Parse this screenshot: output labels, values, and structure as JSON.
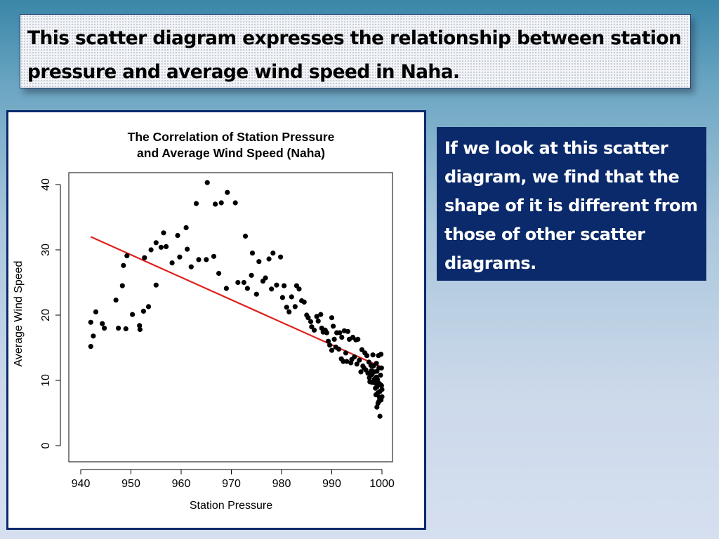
{
  "slide": {
    "heading": "This scatter diagram expresses the relationship between station pressure and average wind speed in Naha.",
    "note": "If we look at this scatter diagram, we find that the shape of it is different from  those of other scatter diagrams."
  },
  "chart_data": {
    "type": "scatter",
    "title_line1": "The Correlation of Station Pressure",
    "title_line2": "and Average Wind Speed (Naha)",
    "xlabel": "Station Pressure",
    "ylabel": "Average Wind Speed",
    "xlim": [
      940,
      1000
    ],
    "ylim": [
      0,
      40
    ],
    "xticks": [
      940,
      950,
      960,
      970,
      980,
      990,
      1000
    ],
    "yticks": [
      0,
      10,
      20,
      30,
      40
    ],
    "grid": false,
    "point_color": "#000000",
    "trend_color": "#e0201b",
    "trend_line": {
      "x": [
        942,
        1000
      ],
      "y": [
        32,
        12
      ]
    },
    "points": [
      [
        942,
        15.2
      ],
      [
        942,
        18.9
      ],
      [
        942.5,
        16.8
      ],
      [
        943,
        20.5
      ],
      [
        944.3,
        18.7
      ],
      [
        944.7,
        18
      ],
      [
        947,
        22.3
      ],
      [
        947.5,
        18
      ],
      [
        948.3,
        24.5
      ],
      [
        948.5,
        27.6
      ],
      [
        949,
        17.9
      ],
      [
        949.2,
        29.1
      ],
      [
        950.3,
        20.1
      ],
      [
        951.7,
        18.4
      ],
      [
        951.8,
        17.8
      ],
      [
        952.5,
        20.6
      ],
      [
        952.7,
        28.8
      ],
      [
        953.5,
        21.3
      ],
      [
        954,
        30
      ],
      [
        955,
        24.6
      ],
      [
        955,
        31.1
      ],
      [
        956,
        30.4
      ],
      [
        956.5,
        32.6
      ],
      [
        957,
        30.5
      ],
      [
        958.2,
        28
      ],
      [
        959.3,
        32.2
      ],
      [
        959.7,
        28.9
      ],
      [
        961,
        33.4
      ],
      [
        961.2,
        30.1
      ],
      [
        962,
        27.4
      ],
      [
        963,
        37.1
      ],
      [
        963.5,
        28.5
      ],
      [
        965.2,
        40.3
      ],
      [
        965,
        28.5
      ],
      [
        966.5,
        29
      ],
      [
        966.8,
        37
      ],
      [
        967.5,
        26.4
      ],
      [
        968,
        37.2
      ],
      [
        969,
        24.1
      ],
      [
        969.2,
        38.8
      ],
      [
        970.8,
        37.2
      ],
      [
        971.3,
        25
      ],
      [
        972.5,
        25
      ],
      [
        972.8,
        32.1
      ],
      [
        973.2,
        24.1
      ],
      [
        974,
        26.1
      ],
      [
        974.2,
        29.5
      ],
      [
        975,
        23.2
      ],
      [
        975.5,
        28.2
      ],
      [
        976.3,
        25.2
      ],
      [
        976.8,
        25.7
      ],
      [
        977.5,
        28.6
      ],
      [
        978,
        24
      ],
      [
        978.3,
        29.5
      ],
      [
        979,
        24.6
      ],
      [
        979.8,
        28.9
      ],
      [
        980.2,
        22.7
      ],
      [
        980.5,
        24.5
      ],
      [
        981,
        21.2
      ],
      [
        981.5,
        20.5
      ],
      [
        982,
        22.8
      ],
      [
        982.7,
        21.3
      ],
      [
        983,
        24.5
      ],
      [
        983.5,
        24
      ],
      [
        984,
        22.2
      ],
      [
        984.5,
        22
      ],
      [
        985,
        20
      ],
      [
        985.3,
        19.6
      ],
      [
        985.8,
        19
      ],
      [
        986,
        18.2
      ],
      [
        986.5,
        17.7
      ],
      [
        987,
        19.8
      ],
      [
        987.3,
        19.1
      ],
      [
        987.8,
        20.1
      ],
      [
        988,
        18
      ],
      [
        988.3,
        17.4
      ],
      [
        988.7,
        17.7
      ],
      [
        989,
        17.3
      ],
      [
        989.3,
        16
      ],
      [
        989.6,
        15.4
      ],
      [
        990,
        19.6
      ],
      [
        990,
        14.6
      ],
      [
        990.3,
        18.3
      ],
      [
        990.5,
        16.3
      ],
      [
        990.8,
        15.1
      ],
      [
        991,
        17.3
      ],
      [
        991.4,
        14.8
      ],
      [
        991.6,
        17.3
      ],
      [
        991.9,
        13.3
      ],
      [
        992,
        16.6
      ],
      [
        992.3,
        12.9
      ],
      [
        992.5,
        17.6
      ],
      [
        992.8,
        14.2
      ],
      [
        993,
        12.9
      ],
      [
        993.2,
        17.5
      ],
      [
        993.5,
        16.3
      ],
      [
        993.8,
        12.7
      ],
      [
        994,
        13.2
      ],
      [
        994.2,
        16.6
      ],
      [
        994.5,
        13.6
      ],
      [
        994.8,
        16.2
      ],
      [
        995,
        12.5
      ],
      [
        995.2,
        16.3
      ],
      [
        995.5,
        13.1
      ],
      [
        995.8,
        11.3
      ],
      [
        996,
        14.7
      ],
      [
        996.2,
        12.2
      ],
      [
        996.4,
        11.9
      ],
      [
        996.6,
        14.2
      ],
      [
        996.8,
        11.6
      ],
      [
        997,
        13.8
      ],
      [
        997.2,
        11.1
      ],
      [
        997.4,
        12.8
      ],
      [
        997.5,
        10.4
      ],
      [
        997.6,
        9.8
      ],
      [
        997.8,
        12.3
      ],
      [
        998,
        10.9
      ],
      [
        998,
        9.7
      ],
      [
        998.2,
        13.9
      ],
      [
        998.3,
        12.2
      ],
      [
        998.4,
        11.3
      ],
      [
        998.5,
        10.2
      ],
      [
        998.6,
        9.6
      ],
      [
        998.7,
        8.8
      ],
      [
        998.8,
        7.8
      ],
      [
        998.9,
        12.6
      ],
      [
        999,
        11.4
      ],
      [
        999,
        9
      ],
      [
        999,
        5.9
      ],
      [
        999.1,
        10.1
      ],
      [
        999.2,
        8.1
      ],
      [
        999.2,
        6.5
      ],
      [
        999.3,
        13.8
      ],
      [
        999.4,
        11.9
      ],
      [
        999.5,
        9.5
      ],
      [
        999.5,
        7.4
      ],
      [
        999.6,
        8.3
      ],
      [
        999.6,
        4.5
      ],
      [
        999.7,
        10.8
      ],
      [
        999.8,
        7
      ],
      [
        999.8,
        14
      ],
      [
        999.9,
        9.2
      ],
      [
        999.9,
        11.9
      ],
      [
        1000,
        7.5
      ],
      [
        1000,
        8.6
      ],
      [
        999.4,
        6.8
      ],
      [
        998.9,
        10.5
      ],
      [
        997.9,
        11.5
      ]
    ]
  }
}
